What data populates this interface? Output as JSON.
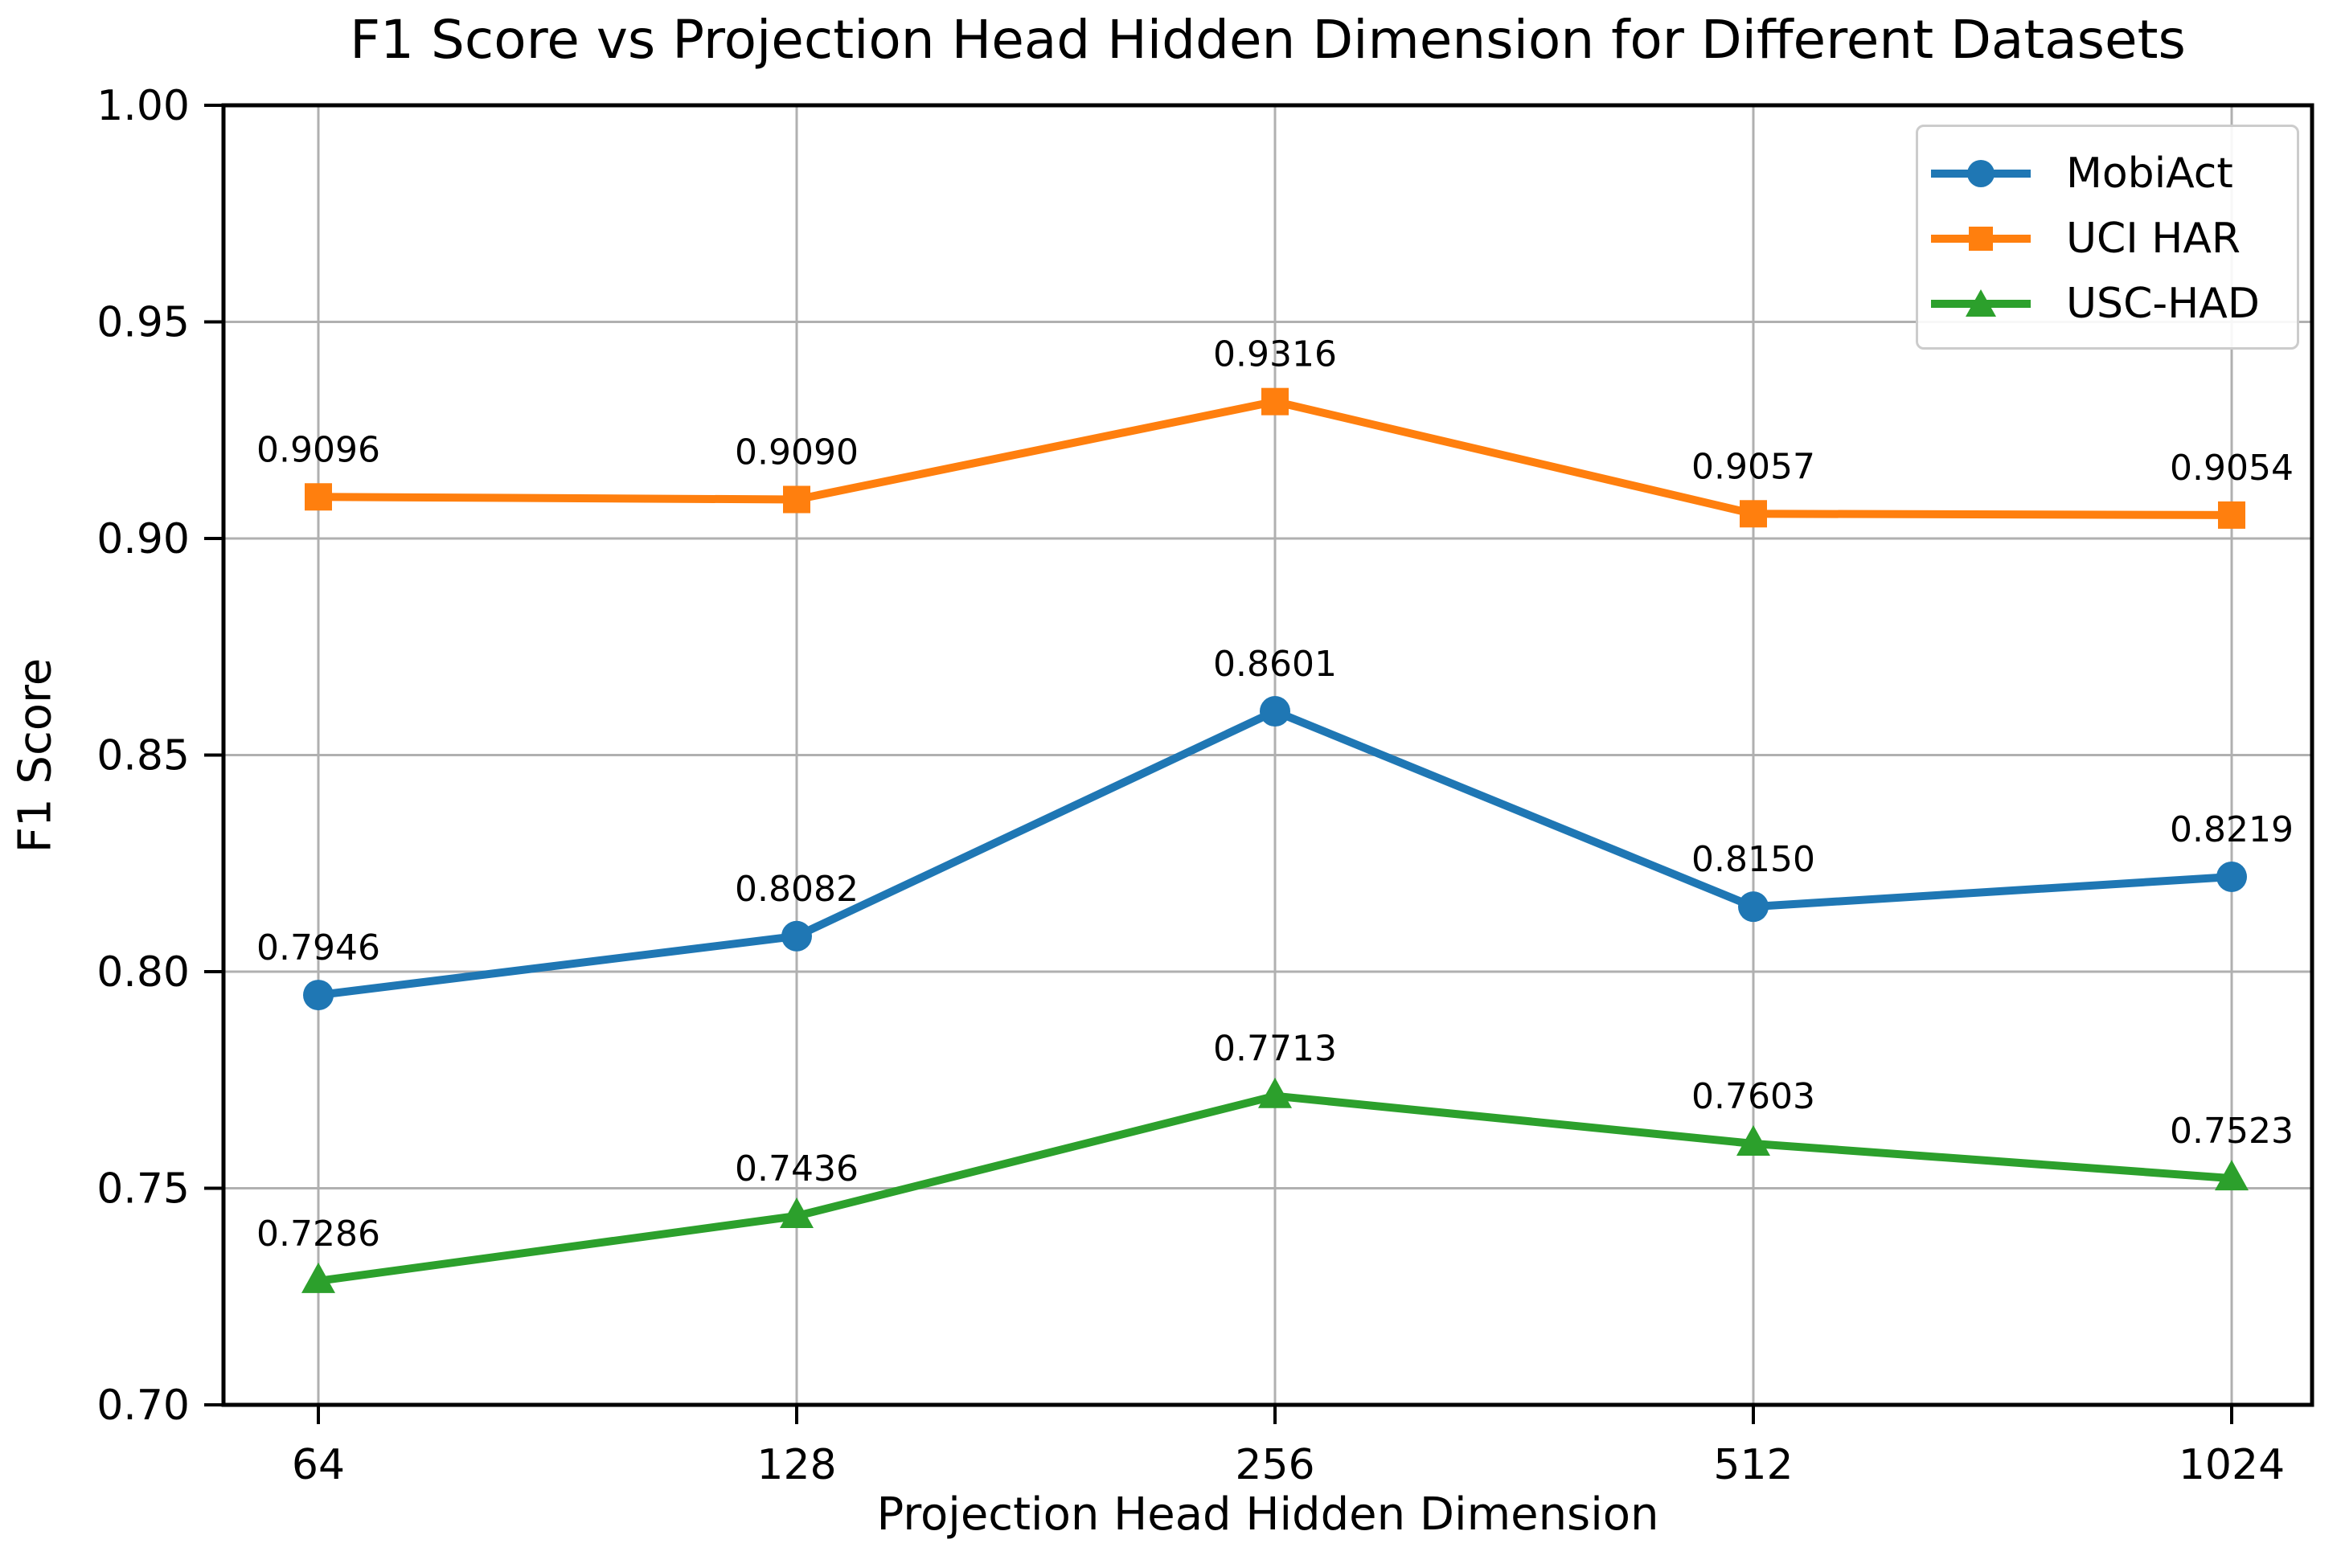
{
  "chart_data": {
    "type": "line",
    "title": "F1 Score vs Projection Head Hidden Dimension for Different Datasets",
    "xlabel": "Projection Head Hidden Dimension",
    "ylabel": "F1 Score",
    "x": [
      "64",
      "128",
      "256",
      "512",
      "1024"
    ],
    "ylim": [
      0.7,
      1.0
    ],
    "yticks": [
      0.7,
      0.75,
      0.8,
      0.85,
      0.9,
      0.95,
      1.0
    ],
    "grid": true,
    "grid_color": "#b0b0b0",
    "legend_position": "upper right",
    "series": [
      {
        "name": "MobiAct",
        "color": "#1f77b4",
        "marker": "circle",
        "values": [
          0.7946,
          0.8082,
          0.8601,
          0.815,
          0.8219
        ]
      },
      {
        "name": "UCI HAR",
        "color": "#ff7f0e",
        "marker": "square",
        "values": [
          0.9096,
          0.909,
          0.9316,
          0.9057,
          0.9054
        ]
      },
      {
        "name": "USC-HAD",
        "color": "#2ca02c",
        "marker": "triangle",
        "values": [
          0.7286,
          0.7436,
          0.7713,
          0.7603,
          0.7523
        ]
      }
    ]
  }
}
